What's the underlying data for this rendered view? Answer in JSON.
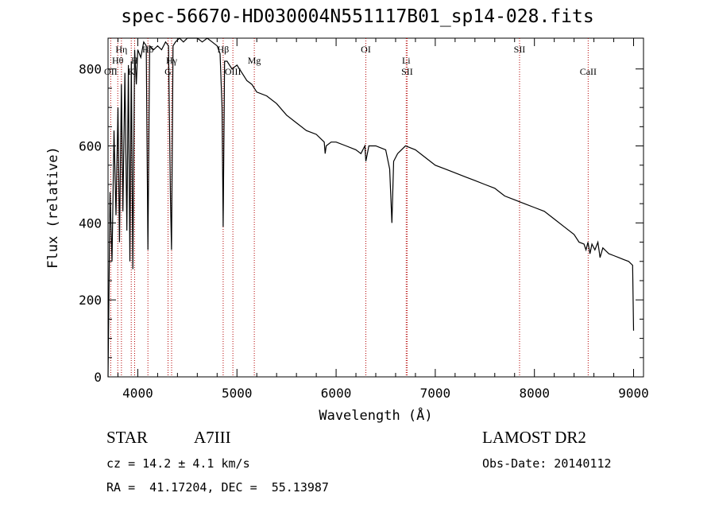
{
  "title": "spec-56670-HD030004N551117B01_sp14-028.fits",
  "info": {
    "obj_class": "STAR",
    "subclass": "A7III",
    "survey": "LAMOST DR2",
    "cz": "cz = 14.2 ± 4.1 km/s",
    "obs_date": "Obs-Date: 20140112",
    "radec": "RA =  41.17204, DEC =  55.13987"
  },
  "colors": {
    "spectrum": "#000000",
    "line_marker": "#b40000"
  },
  "chart_data": {
    "type": "line",
    "xlabel": "Wavelength (Å)",
    "ylabel": "Flux (relative)",
    "xlim": [
      3700,
      9100
    ],
    "ylim": [
      0,
      880
    ],
    "xticks": [
      4000,
      5000,
      6000,
      7000,
      8000,
      9000
    ],
    "yticks": [
      0,
      200,
      400,
      600,
      800
    ],
    "grid": false,
    "series": [
      {
        "x": [
          3700,
          3720,
          3740,
          3760,
          3780,
          3800,
          3815,
          3835,
          3850,
          3870,
          3890,
          3905,
          3920,
          3935,
          3950,
          3968,
          3985,
          4000,
          4030,
          4060,
          4085,
          4102,
          4120,
          4160,
          4200,
          4240,
          4280,
          4310,
          4330,
          4340,
          4355,
          4380,
          4420,
          4460,
          4500,
          4550,
          4600,
          4650,
          4700,
          4750,
          4800,
          4830,
          4850,
          4861,
          4875,
          4900,
          4950,
          5000,
          5050,
          5100,
          5150,
          5200,
          5300,
          5400,
          5500,
          5600,
          5700,
          5800,
          5880,
          5890,
          5900,
          5950,
          6000,
          6100,
          6200,
          6250,
          6290,
          6300,
          6330,
          6400,
          6500,
          6540,
          6563,
          6580,
          6620,
          6700,
          6800,
          6900,
          7000,
          7100,
          7200,
          7300,
          7400,
          7500,
          7600,
          7650,
          7700,
          7800,
          7900,
          8000,
          8100,
          8200,
          8300,
          8400,
          8450,
          8500,
          8520,
          8540,
          8560,
          8580,
          8610,
          8640,
          8662,
          8690,
          8750,
          8800,
          8850,
          8900,
          8950,
          8990,
          9000
        ],
        "y": [
          0,
          480,
          300,
          640,
          420,
          700,
          350,
          760,
          430,
          790,
          380,
          810,
          300,
          820,
          280,
          850,
          760,
          850,
          830,
          870,
          860,
          330,
          860,
          850,
          860,
          850,
          870,
          860,
          460,
          330,
          860,
          870,
          880,
          870,
          880,
          880,
          880,
          870,
          880,
          870,
          860,
          840,
          700,
          390,
          820,
          820,
          800,
          810,
          790,
          770,
          760,
          740,
          730,
          710,
          680,
          660,
          640,
          630,
          610,
          580,
          600,
          610,
          610,
          600,
          590,
          580,
          600,
          560,
          600,
          600,
          590,
          540,
          400,
          560,
          580,
          600,
          590,
          570,
          550,
          540,
          530,
          520,
          510,
          500,
          490,
          480,
          470,
          460,
          450,
          440,
          430,
          410,
          390,
          370,
          350,
          345,
          330,
          350,
          320,
          345,
          330,
          350,
          310,
          335,
          320,
          315,
          310,
          305,
          300,
          290,
          120
        ]
      }
    ],
    "annotations": [
      {
        "label": "OII",
        "x": 3727
      },
      {
        "label": "Hθ",
        "x": 3798
      },
      {
        "label": "Hη",
        "x": 3835
      },
      {
        "label": "K",
        "x": 3934
      },
      {
        "label": "H",
        "x": 3968
      },
      {
        "label": "Hδ",
        "x": 4102
      },
      {
        "label": "G",
        "x": 4305
      },
      {
        "label": "Hγ",
        "x": 4341
      },
      {
        "label": "Hβ",
        "x": 4861
      },
      {
        "label": "OIII",
        "x": 4959
      },
      {
        "label": "Mg",
        "x": 5175
      },
      {
        "label": "OI",
        "x": 6300
      },
      {
        "label": "SII",
        "x": 6716
      },
      {
        "label": "Li",
        "x": 6707
      },
      {
        "label": "SII",
        "x": 7850
      },
      {
        "label": "CaII",
        "x": 8542
      }
    ]
  }
}
